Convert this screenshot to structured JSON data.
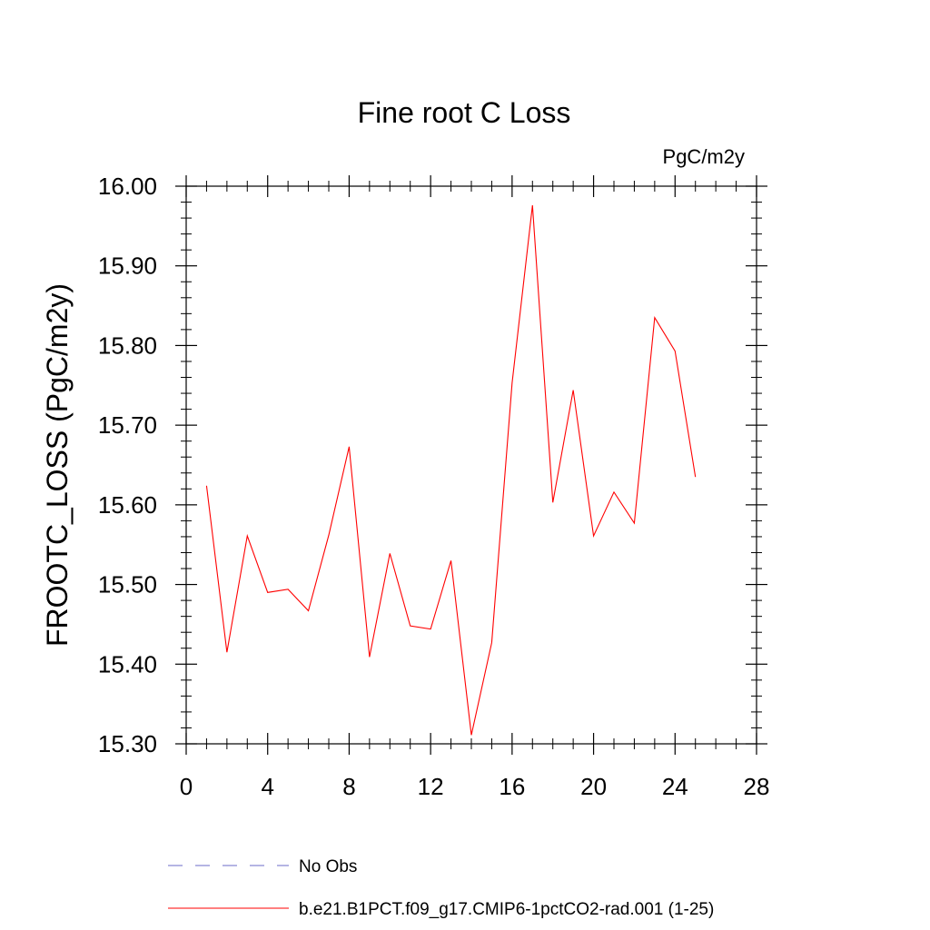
{
  "chart_data": {
    "type": "line",
    "title": "Fine root C Loss",
    "units_label": "PgC/m2y",
    "ylabel": "FROOTC_LOSS  (PgC/m2y)",
    "xlabel": "",
    "xlim": [
      0,
      28
    ],
    "ylim": [
      15.3,
      16.0
    ],
    "x_ticks": [
      0,
      4,
      8,
      12,
      16,
      20,
      24,
      28
    ],
    "x_tick_labels": [
      "0",
      "4",
      "8",
      "12",
      "16",
      "20",
      "24",
      "28"
    ],
    "y_ticks": [
      15.3,
      15.4,
      15.5,
      15.6,
      15.7,
      15.8,
      15.9,
      16.0
    ],
    "y_tick_labels": [
      "15.30",
      "15.40",
      "15.50",
      "15.60",
      "15.70",
      "15.80",
      "15.90",
      "16.00"
    ],
    "grid": false,
    "legend_position": "bottom",
    "series": [
      {
        "name": "b.e21.B1PCT.f09_g17.CMIP6-1pctCO2-rad.001 (1-25)",
        "color": "#ff0000",
        "style": "solid",
        "x": [
          1,
          2,
          3,
          4,
          5,
          6,
          7,
          8,
          9,
          10,
          11,
          12,
          13,
          14,
          15,
          16,
          17,
          18,
          19,
          20,
          21,
          22,
          23,
          24,
          25
        ],
        "y": [
          15.624,
          15.415,
          15.561,
          15.49,
          15.494,
          15.467,
          15.562,
          15.673,
          15.409,
          15.539,
          15.448,
          15.444,
          15.53,
          15.311,
          15.427,
          15.753,
          15.976,
          15.603,
          15.744,
          15.561,
          15.616,
          15.577,
          15.835,
          15.793,
          15.635
        ]
      }
    ],
    "legend": [
      {
        "label": "No Obs",
        "color": "#6b6bc8",
        "style": "dashed"
      },
      {
        "label": "b.e21.B1PCT.f09_g17.CMIP6-1pctCO2-rad.001 (1-25)",
        "color": "#ff0000",
        "style": "solid"
      }
    ]
  }
}
